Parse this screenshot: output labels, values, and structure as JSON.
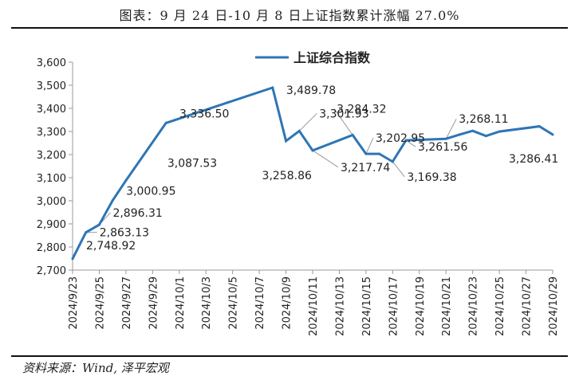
{
  "header": {
    "title": "图表：9 月 24 日-10 月 8 日上证指数累计涨幅 27.0%"
  },
  "footer": {
    "source": "资料来源：Wind, 泽平宏观"
  },
  "colors": {
    "series": "#2E75B6",
    "axis": "#999999",
    "leader": "#999999"
  },
  "chart_data": {
    "type": "line",
    "title": "",
    "xlabel": "",
    "ylabel": "",
    "ylim": [
      2700,
      3600
    ],
    "yticks": [
      2700,
      2800,
      2900,
      3000,
      3100,
      3200,
      3300,
      3400,
      3500,
      3600
    ],
    "ytick_labels": [
      "2,700",
      "2,800",
      "2,900",
      "3,000",
      "3,100",
      "3,200",
      "3,300",
      "3,400",
      "3,500",
      "3,600"
    ],
    "x_range": [
      "2024/9/23",
      "2024/10/29"
    ],
    "x_tick_labels": [
      "2024/9/23",
      "2024/9/25",
      "2024/9/27",
      "2024/9/29",
      "2024/10/1",
      "2024/10/3",
      "2024/10/5",
      "2024/10/7",
      "2024/10/9",
      "2024/10/11",
      "2024/10/13",
      "2024/10/15",
      "2024/10/17",
      "2024/10/19",
      "2024/10/21",
      "2024/10/23",
      "2024/10/25",
      "2024/10/27",
      "2024/10/29"
    ],
    "legend": {
      "position": "top-center",
      "entries": [
        "上证综合指数"
      ]
    },
    "series": [
      {
        "name": "上证综合指数",
        "points": [
          {
            "date": "2024/9/23",
            "value": 2748.92
          },
          {
            "date": "2024/9/24",
            "value": 2863.13
          },
          {
            "date": "2024/9/25",
            "value": 2896.31
          },
          {
            "date": "2024/9/26",
            "value": 3000.95
          },
          {
            "date": "2024/9/27",
            "value": 3087.53
          },
          {
            "date": "2024/9/30",
            "value": 3336.5
          },
          {
            "date": "2024/10/8",
            "value": 3489.78
          },
          {
            "date": "2024/10/9",
            "value": 3258.86
          },
          {
            "date": "2024/10/10",
            "value": 3301.93
          },
          {
            "date": "2024/10/11",
            "value": 3217.74
          },
          {
            "date": "2024/10/14",
            "value": 3284.32
          },
          {
            "date": "2024/10/15",
            "value": 3202.95
          },
          {
            "date": "2024/10/16",
            "value": 3202.95
          },
          {
            "date": "2024/10/17",
            "value": 3169.38
          },
          {
            "date": "2024/10/18",
            "value": 3261.56
          },
          {
            "date": "2024/10/21",
            "value": 3268.11
          },
          {
            "date": "2024/10/22",
            "value": 3285.87
          },
          {
            "date": "2024/10/23",
            "value": 3302.8
          },
          {
            "date": "2024/10/24",
            "value": 3280.26
          },
          {
            "date": "2024/10/25",
            "value": 3299.7
          },
          {
            "date": "2024/10/28",
            "value": 3322.2
          },
          {
            "date": "2024/10/29",
            "value": 3286.41
          }
        ]
      }
    ],
    "data_labels": [
      {
        "date": "2024/9/23",
        "text": "2,748.92"
      },
      {
        "date": "2024/9/24",
        "text": "2,863.13"
      },
      {
        "date": "2024/9/25",
        "text": "2,896.31"
      },
      {
        "date": "2024/9/26",
        "text": "3,000.95"
      },
      {
        "date": "2024/9/27",
        "text": "3,087.53"
      },
      {
        "date": "2024/9/30",
        "text": "3,336.50"
      },
      {
        "date": "2024/10/8",
        "text": "3,489.78"
      },
      {
        "date": "2024/10/9",
        "text": "3,258.86"
      },
      {
        "date": "2024/10/10",
        "text": "3,301.93"
      },
      {
        "date": "2024/10/11",
        "text": "3,217.74"
      },
      {
        "date": "2024/10/14",
        "text": "3,284.32"
      },
      {
        "date": "2024/10/15",
        "text": "3,202.95"
      },
      {
        "date": "2024/10/17",
        "text": "3,169.38"
      },
      {
        "date": "2024/10/18",
        "text": "3,261.56"
      },
      {
        "date": "2024/10/21",
        "text": "3,268.11"
      },
      {
        "date": "2024/10/29",
        "text": "3,286.41"
      }
    ]
  }
}
